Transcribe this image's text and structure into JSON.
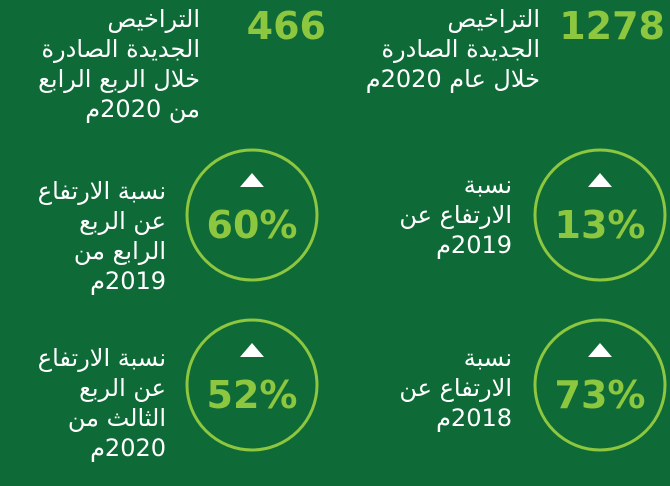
{
  "stats": [
    {
      "value": "1278",
      "label": [
        "التراخيص",
        "الجديدة الصادرة",
        "خلال عام 2020م"
      ]
    },
    {
      "value": "466",
      "label": [
        "التراخيص",
        "الجديدة الصادرة",
        "خلال الربع الرابع",
        "من 2020م"
      ]
    }
  ],
  "growth": [
    {
      "value": "13%",
      "label": [
        "نسبة",
        "الارتفاع عن",
        "2019م"
      ]
    },
    {
      "value": "60%",
      "label": [
        "نسبة الارتفاع",
        "عن الربع",
        "الرابع من",
        "2019م"
      ]
    },
    {
      "value": "73%",
      "label": [
        "نسبة",
        "الارتفاع عن",
        "2018م"
      ]
    },
    {
      "value": "52%",
      "label": [
        "نسبة الارتفاع",
        "عن الربع",
        "الثالث من",
        "2020م"
      ]
    }
  ]
}
